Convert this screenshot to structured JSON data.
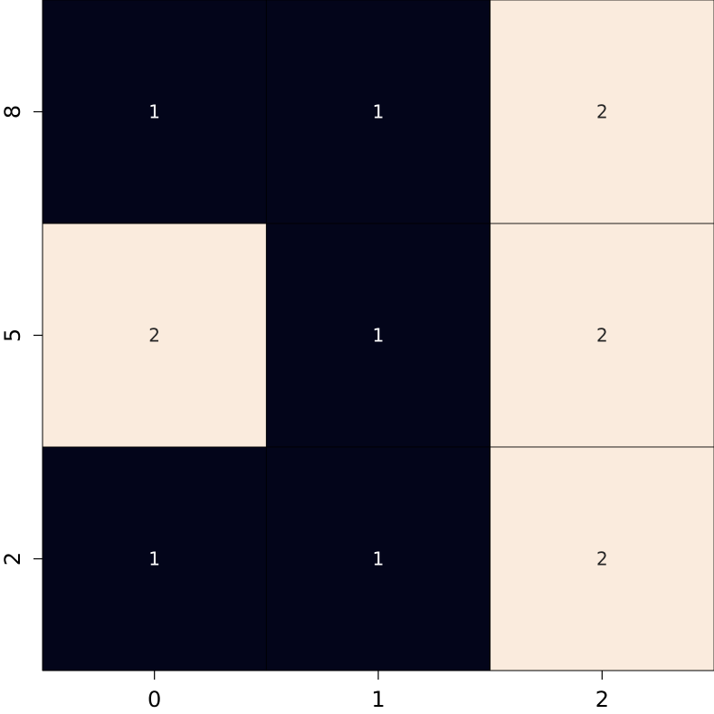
{
  "chart_data": {
    "type": "heatmap",
    "x_categories": [
      "0",
      "1",
      "2"
    ],
    "y_categories": [
      "8",
      "5",
      "2"
    ],
    "values": [
      [
        1,
        1,
        2
      ],
      [
        2,
        1,
        2
      ],
      [
        1,
        1,
        2
      ]
    ],
    "color_scale": {
      "low": "#03051a",
      "high": "#faebdd"
    },
    "annotation_colors": {
      "on_dark": "#ffffff",
      "on_light": "#262626"
    },
    "title": "",
    "xlabel": "",
    "ylabel": "",
    "colorbar": false
  }
}
